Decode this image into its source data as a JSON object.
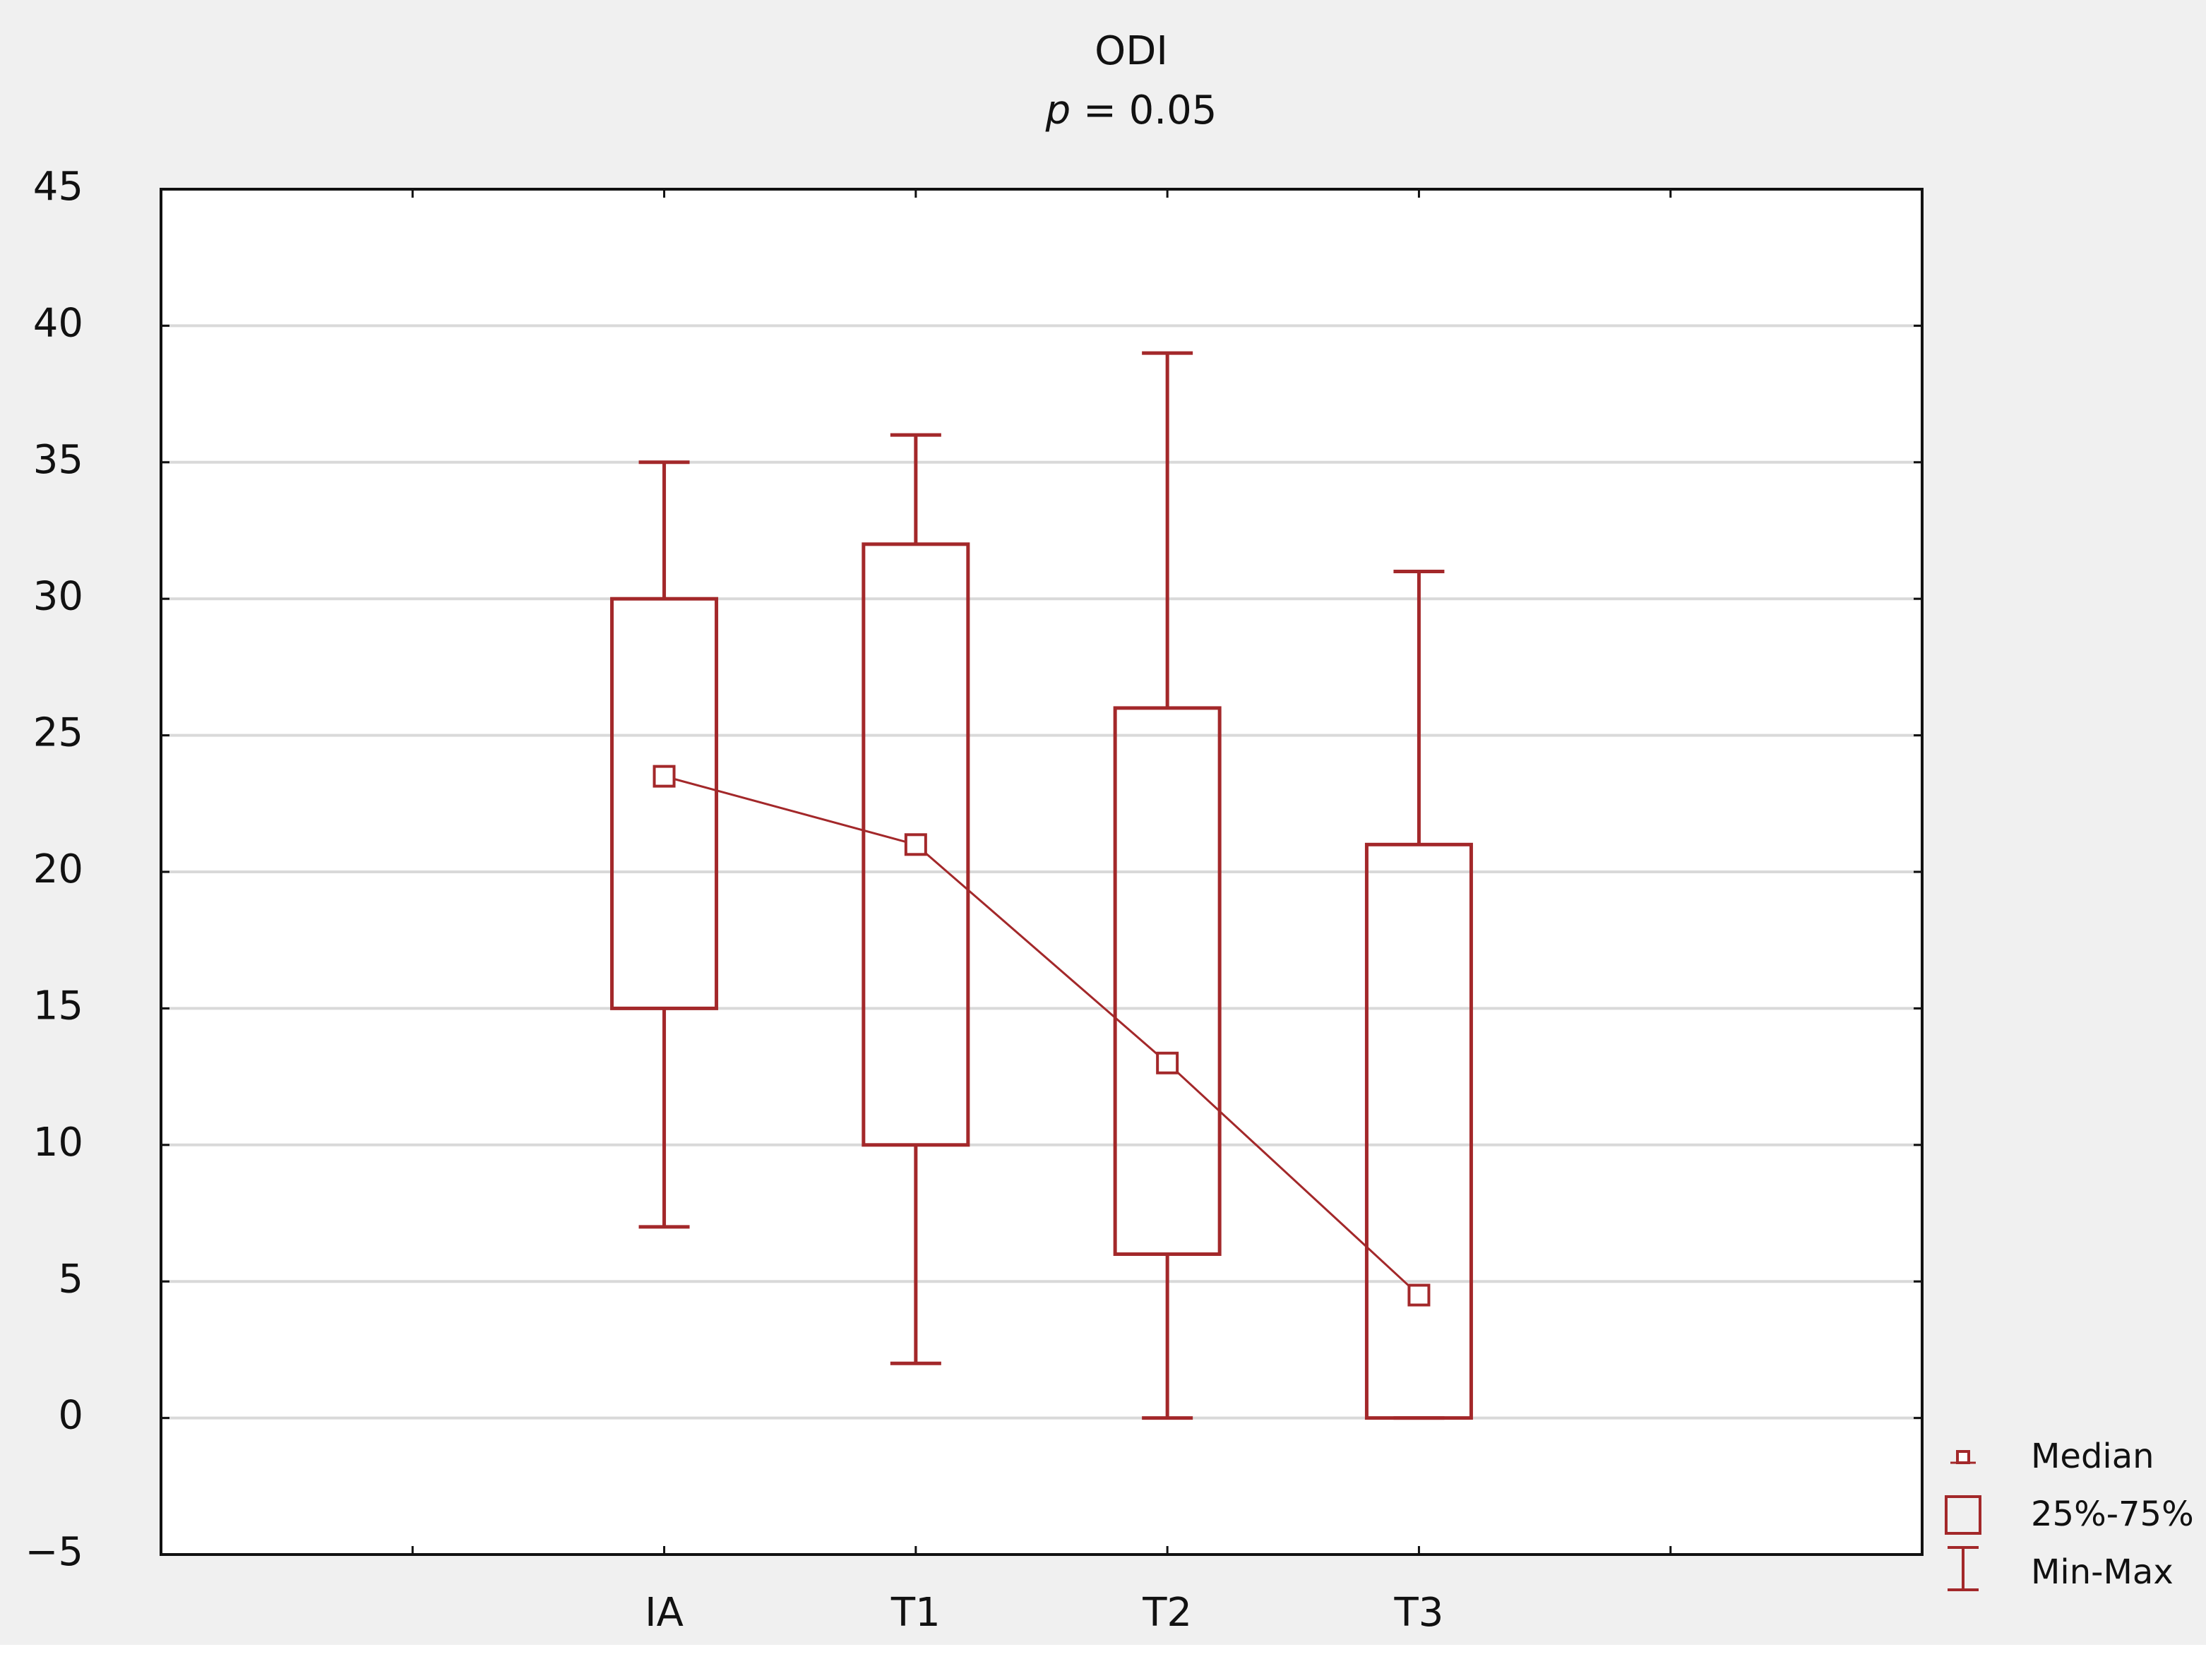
{
  "chart_data": {
    "type": "box",
    "title": "ODI",
    "subtitle": "p = 0.05",
    "categories": [
      null,
      "IA",
      "T1",
      "T2",
      "T3",
      null
    ],
    "min": [
      null,
      7,
      2,
      0,
      0,
      null
    ],
    "q1": [
      null,
      15,
      10,
      6,
      0,
      null
    ],
    "median": [
      null,
      23.5,
      21,
      13,
      4.5,
      null
    ],
    "q3": [
      null,
      30,
      32,
      26,
      21,
      null
    ],
    "max": [
      null,
      35,
      36,
      39,
      31,
      null
    ],
    "legend": {
      "median": "Median",
      "box": "25%-75%",
      "whisker": "Min-Max"
    },
    "color": "#a3282a",
    "ylim": [
      -5,
      45
    ],
    "yticks": [
      {
        "value": -5,
        "label": "−5"
      },
      0,
      5,
      10,
      15,
      20,
      25,
      30,
      35,
      40,
      45
    ],
    "grid": true
  }
}
